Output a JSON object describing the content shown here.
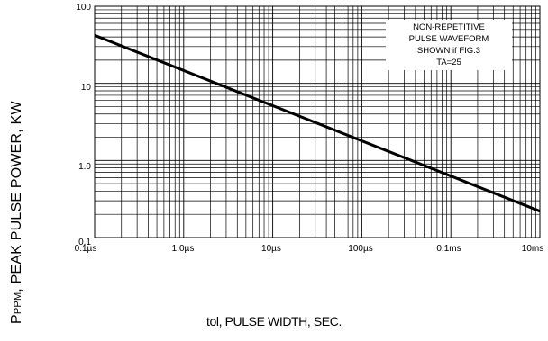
{
  "chart_data": {
    "type": "line",
    "xscale": "log",
    "yscale": "log",
    "xlim": [
      1e-07,
      0.01
    ],
    "ylim": [
      0.1,
      100
    ],
    "grid": true,
    "x_tick_labels": [
      "0.1µs",
      "1.0µs",
      "10µs",
      "100µs",
      "0.1ms",
      "10ms"
    ],
    "y_tick_labels": [
      "100",
      "10",
      "1.0",
      "0.1"
    ],
    "ylabel_main": "P",
    "ylabel_sub": "PPM",
    "ylabel_rest": ", PEAK PULSE POWER, KW",
    "xlabel": "tol, PULSE WIDTH, SEC.",
    "annotation": [
      "NON-REPETITIVE",
      "PULSE WAVEFORM",
      "SHOWN if FIG.3",
      "TA=25"
    ],
    "series": [
      {
        "x": [
          1e-07,
          0.01
        ],
        "y": [
          42,
          0.22
        ],
        "color": "#000000"
      }
    ]
  }
}
